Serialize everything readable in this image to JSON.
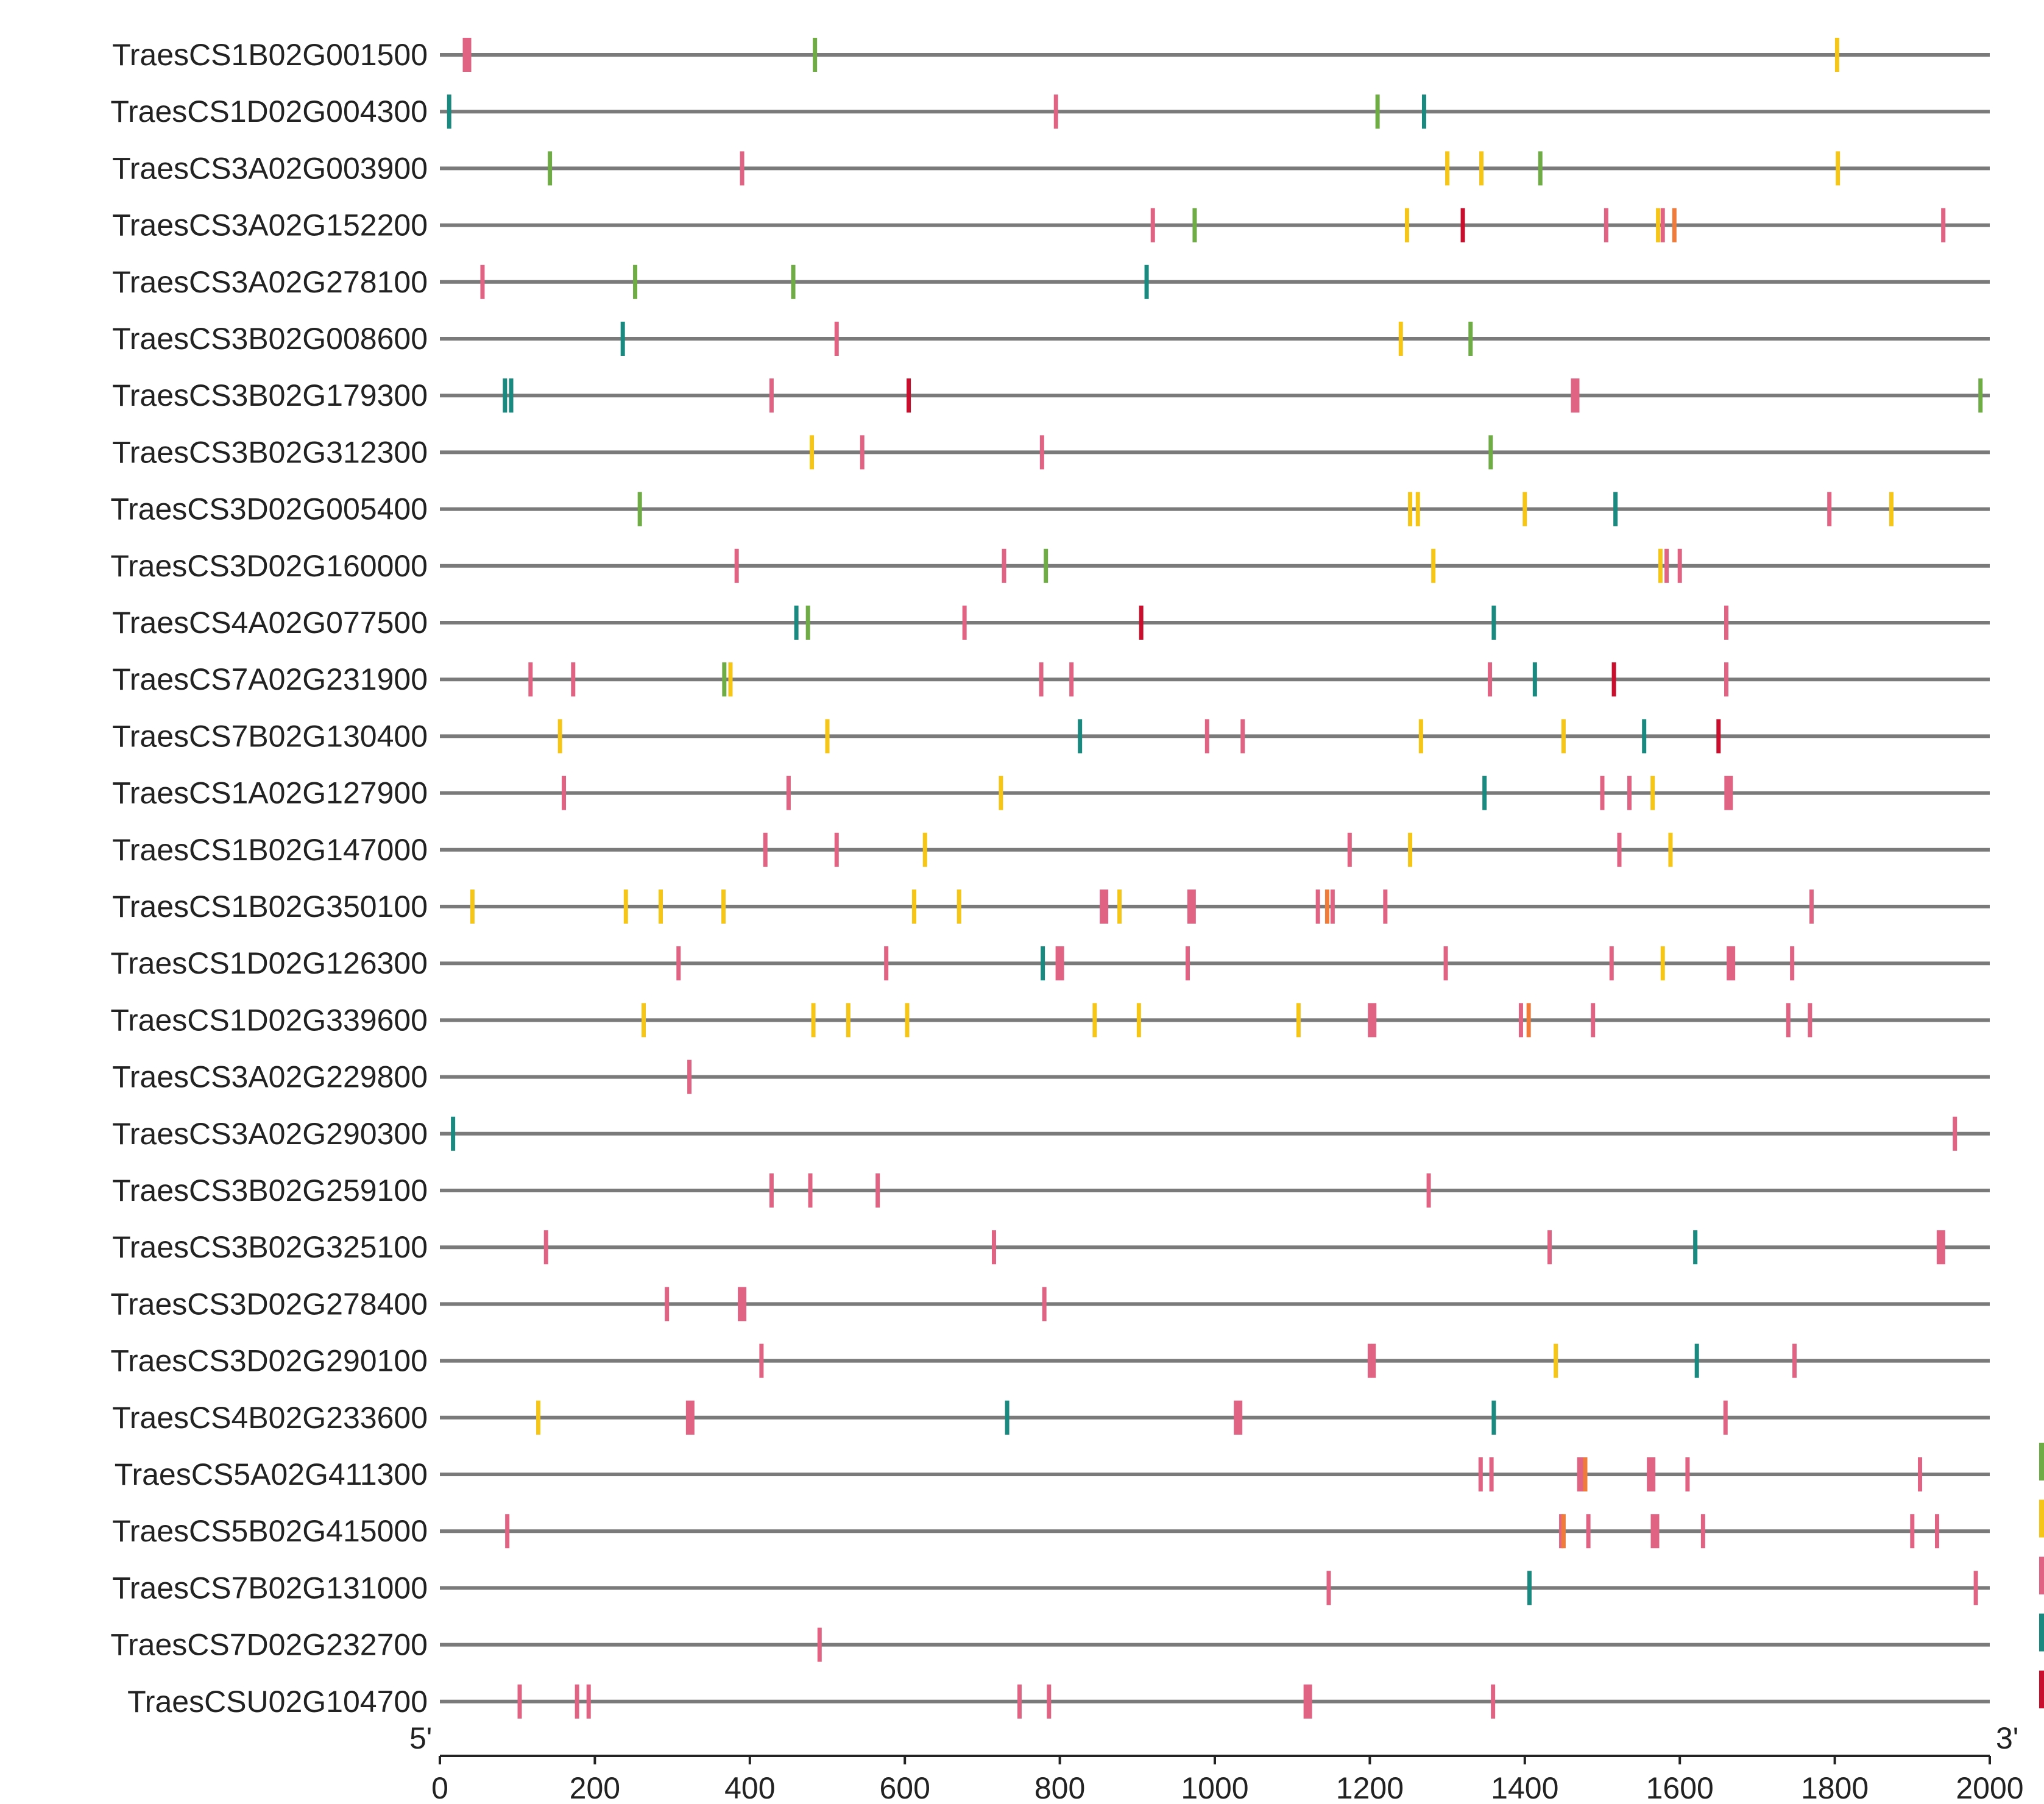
{
  "chart_data": {
    "type": "promoter-element-map",
    "title": "",
    "xlabel": "",
    "ylabel": "",
    "x_range": [
      0,
      2000
    ],
    "x_ticks": [
      0,
      200,
      400,
      600,
      800,
      1000,
      1200,
      1400,
      1600,
      1800,
      2000
    ],
    "end_labels": {
      "start": "5'",
      "end": "3'"
    },
    "colors": {
      "G": "#6fac46",
      "Y": "#f5c518",
      "P": "#e06383",
      "T": "#1a8a80",
      "R": "#c8102e",
      "O": "#f07c3c"
    },
    "legend_colors": [
      "#6fac46",
      "#f5c518",
      "#e06383",
      "#1a8a80",
      "#c8102e"
    ],
    "genes": [
      {
        "name": "TraesCS1B02G001500",
        "marks": [
          [
            35,
            "P",
            2
          ],
          [
            484,
            "G"
          ],
          [
            1803,
            "Y"
          ]
        ]
      },
      {
        "name": "TraesCS1D02G004300",
        "marks": [
          [
            12,
            "T"
          ],
          [
            795,
            "P"
          ],
          [
            1210,
            "G"
          ],
          [
            1270,
            "T"
          ]
        ]
      },
      {
        "name": "TraesCS3A02G003900",
        "marks": [
          [
            142,
            "G"
          ],
          [
            390,
            "P"
          ],
          [
            1300,
            "Y"
          ],
          [
            1344,
            "Y"
          ],
          [
            1420,
            "G"
          ],
          [
            1804,
            "Y"
          ]
        ]
      },
      {
        "name": "TraesCS3A02G152200",
        "marks": [
          [
            920,
            "P"
          ],
          [
            974,
            "G"
          ],
          [
            1248,
            "Y"
          ],
          [
            1320,
            "R"
          ],
          [
            1505,
            "P"
          ],
          [
            1572,
            "Y"
          ],
          [
            1578,
            "P"
          ],
          [
            1593,
            "O"
          ],
          [
            1940,
            "P"
          ]
        ]
      },
      {
        "name": "TraesCS3A02G278100",
        "marks": [
          [
            55,
            "P"
          ],
          [
            252,
            "G"
          ],
          [
            456,
            "G"
          ],
          [
            912,
            "T"
          ]
        ]
      },
      {
        "name": "TraesCS3B02G008600",
        "marks": [
          [
            236,
            "T"
          ],
          [
            512,
            "P"
          ],
          [
            1240,
            "Y"
          ],
          [
            1330,
            "G"
          ]
        ]
      },
      {
        "name": "TraesCS3B02G179300",
        "marks": [
          [
            84,
            "T"
          ],
          [
            92,
            "T"
          ],
          [
            428,
            "P"
          ],
          [
            605,
            "R"
          ],
          [
            1465,
            "P",
            2
          ],
          [
            1988,
            "G"
          ]
        ]
      },
      {
        "name": "TraesCS3B02G312300",
        "marks": [
          [
            480,
            "Y"
          ],
          [
            545,
            "P"
          ],
          [
            777,
            "P"
          ],
          [
            1356,
            "G"
          ]
        ]
      },
      {
        "name": "TraesCS3D02G005400",
        "marks": [
          [
            258,
            "G"
          ],
          [
            1252,
            "Y"
          ],
          [
            1262,
            "Y"
          ],
          [
            1400,
            "Y"
          ],
          [
            1517,
            "T"
          ],
          [
            1793,
            "P"
          ],
          [
            1873,
            "Y"
          ]
        ]
      },
      {
        "name": "TraesCS3D02G160000",
        "marks": [
          [
            383,
            "P"
          ],
          [
            728,
            "P"
          ],
          [
            782,
            "G"
          ],
          [
            1282,
            "Y"
          ],
          [
            1575,
            "Y"
          ],
          [
            1583,
            "P"
          ],
          [
            1600,
            "P"
          ]
        ]
      },
      {
        "name": "TraesCS4A02G077500",
        "marks": [
          [
            460,
            "T"
          ],
          [
            475,
            "G"
          ],
          [
            677,
            "P"
          ],
          [
            905,
            "R"
          ],
          [
            1360,
            "T"
          ],
          [
            1660,
            "P"
          ]
        ]
      },
      {
        "name": "TraesCS7A02G231900",
        "marks": [
          [
            117,
            "P"
          ],
          [
            172,
            "P"
          ],
          [
            367,
            "G"
          ],
          [
            375,
            "Y"
          ],
          [
            776,
            "P"
          ],
          [
            815,
            "P"
          ],
          [
            1355,
            "P"
          ],
          [
            1413,
            "T"
          ],
          [
            1515,
            "R"
          ],
          [
            1660,
            "P"
          ]
        ]
      },
      {
        "name": "TraesCS7B02G130400",
        "marks": [
          [
            155,
            "Y"
          ],
          [
            500,
            "Y"
          ],
          [
            826,
            "T"
          ],
          [
            990,
            "P"
          ],
          [
            1036,
            "P"
          ],
          [
            1266,
            "Y"
          ],
          [
            1450,
            "Y"
          ],
          [
            1554,
            "T"
          ],
          [
            1650,
            "R"
          ]
        ]
      },
      {
        "name": "TraesCS1A02G127900",
        "marks": [
          [
            160,
            "P"
          ],
          [
            450,
            "P"
          ],
          [
            724,
            "Y"
          ],
          [
            1348,
            "T"
          ],
          [
            1500,
            "P"
          ],
          [
            1535,
            "P"
          ],
          [
            1565,
            "Y"
          ],
          [
            1663,
            "P",
            2
          ]
        ]
      },
      {
        "name": "TraesCS1B02G147000",
        "marks": [
          [
            420,
            "P"
          ],
          [
            512,
            "P"
          ],
          [
            626,
            "Y"
          ],
          [
            1174,
            "P"
          ],
          [
            1252,
            "Y"
          ],
          [
            1522,
            "P"
          ],
          [
            1588,
            "Y"
          ]
        ]
      },
      {
        "name": "TraesCS1B02G350100",
        "marks": [
          [
            42,
            "Y"
          ],
          [
            240,
            "Y"
          ],
          [
            285,
            "Y"
          ],
          [
            366,
            "Y"
          ],
          [
            612,
            "Y"
          ],
          [
            670,
            "Y"
          ],
          [
            857,
            "P",
            2
          ],
          [
            877,
            "Y"
          ],
          [
            970,
            "P",
            2
          ],
          [
            1133,
            "P"
          ],
          [
            1145,
            "O"
          ],
          [
            1152,
            "P"
          ],
          [
            1220,
            "P"
          ],
          [
            1770,
            "P"
          ]
        ]
      },
      {
        "name": "TraesCS1D02G126300",
        "marks": [
          [
            308,
            "P"
          ],
          [
            576,
            "P"
          ],
          [
            778,
            "T"
          ],
          [
            800,
            "P",
            2
          ],
          [
            965,
            "P"
          ],
          [
            1298,
            "P"
          ],
          [
            1512,
            "P"
          ],
          [
            1578,
            "Y"
          ],
          [
            1666,
            "P",
            2
          ],
          [
            1745,
            "P"
          ]
        ]
      },
      {
        "name": "TraesCS1D02G339600",
        "marks": [
          [
            263,
            "Y"
          ],
          [
            482,
            "Y"
          ],
          [
            527,
            "Y"
          ],
          [
            603,
            "Y"
          ],
          [
            845,
            "Y"
          ],
          [
            902,
            "Y"
          ],
          [
            1108,
            "Y"
          ],
          [
            1203,
            "P",
            2
          ],
          [
            1395,
            "P"
          ],
          [
            1405,
            "O"
          ],
          [
            1488,
            "P"
          ],
          [
            1740,
            "P"
          ],
          [
            1768,
            "P"
          ]
        ]
      },
      {
        "name": "TraesCS3A02G229800",
        "marks": [
          [
            322,
            "P"
          ]
        ]
      },
      {
        "name": "TraesCS3A02G290300",
        "marks": [
          [
            17,
            "T"
          ],
          [
            1955,
            "P"
          ]
        ]
      },
      {
        "name": "TraesCS3B02G259100",
        "marks": [
          [
            428,
            "P"
          ],
          [
            478,
            "P"
          ],
          [
            565,
            "P"
          ],
          [
            1276,
            "P"
          ]
        ]
      },
      {
        "name": "TraesCS3B02G325100",
        "marks": [
          [
            137,
            "P"
          ],
          [
            715,
            "P"
          ],
          [
            1432,
            "P"
          ],
          [
            1620,
            "T"
          ],
          [
            1937,
            "P",
            2
          ]
        ]
      },
      {
        "name": "TraesCS3D02G278400",
        "marks": [
          [
            293,
            "P"
          ],
          [
            390,
            "P",
            2
          ],
          [
            780,
            "P"
          ]
        ]
      },
      {
        "name": "TraesCS3D02G290100",
        "marks": [
          [
            415,
            "P"
          ],
          [
            1200,
            "P"
          ],
          [
            1205,
            "P"
          ],
          [
            1440,
            "Y"
          ],
          [
            1622,
            "T"
          ],
          [
            1748,
            "P"
          ]
        ]
      },
      {
        "name": "TraesCS4B02G233600",
        "marks": [
          [
            127,
            "Y"
          ],
          [
            323,
            "P",
            2
          ],
          [
            732,
            "T"
          ],
          [
            1030,
            "P",
            2
          ],
          [
            1360,
            "T"
          ],
          [
            1659,
            "P"
          ]
        ]
      },
      {
        "name": "TraesCS5A02G411300",
        "marks": [
          [
            1343,
            "P"
          ],
          [
            1357,
            "P"
          ],
          [
            1473,
            "P",
            2
          ],
          [
            1478,
            "O"
          ],
          [
            1563,
            "P",
            2
          ],
          [
            1610,
            "P"
          ],
          [
            1910,
            "P"
          ]
        ]
      },
      {
        "name": "TraesCS5B02G415000",
        "marks": [
          [
            87,
            "P"
          ],
          [
            1447,
            "P"
          ],
          [
            1450,
            "O"
          ],
          [
            1482,
            "P"
          ],
          [
            1568,
            "P",
            2
          ],
          [
            1630,
            "P"
          ],
          [
            1900,
            "P"
          ],
          [
            1932,
            "P"
          ]
        ]
      },
      {
        "name": "TraesCS7B02G131000",
        "marks": [
          [
            1147,
            "P"
          ],
          [
            1406,
            "T"
          ],
          [
            1982,
            "P"
          ]
        ]
      },
      {
        "name": "TraesCS7D02G232700",
        "marks": [
          [
            490,
            "P"
          ]
        ]
      },
      {
        "name": "TraesCSU02G104700",
        "marks": [
          [
            103,
            "P"
          ],
          [
            177,
            "P"
          ],
          [
            192,
            "P"
          ],
          [
            748,
            "P"
          ],
          [
            786,
            "P"
          ],
          [
            1120,
            "P",
            2
          ],
          [
            1359,
            "P"
          ]
        ]
      }
    ]
  }
}
